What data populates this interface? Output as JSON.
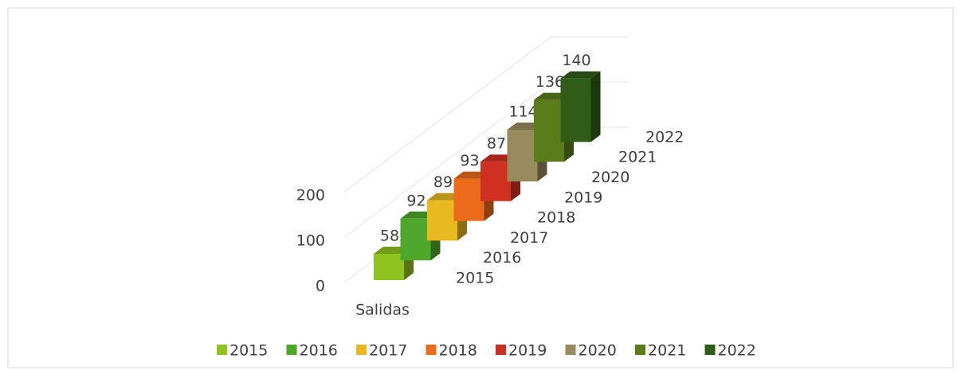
{
  "chart_data": {
    "type": "bar3d",
    "categories": [
      "Salidas"
    ],
    "series": [
      {
        "name": "2015",
        "color": "#8fc31f",
        "values": [
          58
        ]
      },
      {
        "name": "2016",
        "color": "#4ea72a",
        "values": [
          92
        ]
      },
      {
        "name": "2017",
        "color": "#e8b820",
        "values": [
          89
        ]
      },
      {
        "name": "2018",
        "color": "#ec6b1a",
        "values": [
          93
        ]
      },
      {
        "name": "2019",
        "color": "#d0301f",
        "values": [
          87
        ]
      },
      {
        "name": "2020",
        "color": "#978b5d",
        "values": [
          114
        ]
      },
      {
        "name": "2021",
        "color": "#5a7d1a",
        "values": [
          136
        ]
      },
      {
        "name": "2022",
        "color": "#2f5c16",
        "values": [
          140
        ]
      }
    ],
    "ylim": [
      0,
      200
    ],
    "yticks": [
      0,
      100,
      200
    ],
    "grid": true,
    "legend": "bottom"
  }
}
